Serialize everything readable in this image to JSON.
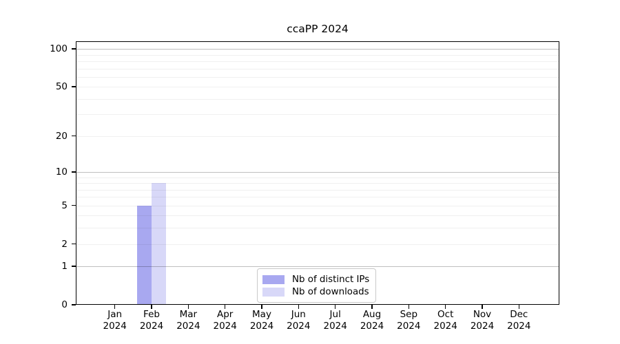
{
  "figure": {
    "background": "#ffffff"
  },
  "chart_data": {
    "type": "bar",
    "title": "ccaPP 2024",
    "categories": [
      "Jan",
      "Feb",
      "Mar",
      "Apr",
      "May",
      "Jun",
      "Jul",
      "Aug",
      "Sep",
      "Oct",
      "Nov",
      "Dec"
    ],
    "x_sublabel_year": "2024",
    "series": [
      {
        "name": "Nb of distinct IPs",
        "color": "#a8a8f0",
        "values": [
          0,
          5,
          0,
          0,
          0,
          0,
          0,
          0,
          0,
          0,
          0,
          0
        ]
      },
      {
        "name": "Nb of downloads",
        "color": "#d8d8f8",
        "values": [
          0,
          8,
          0,
          0,
          0,
          0,
          0,
          0,
          0,
          0,
          0,
          0
        ]
      }
    ],
    "yscale": "log1p",
    "ylim": [
      0,
      115
    ],
    "ytick_labels": [
      0,
      1,
      2,
      5,
      10,
      20,
      50,
      100
    ],
    "grid_major_values": [
      1,
      10,
      100
    ],
    "grid_minor_values": [
      2,
      3,
      4,
      5,
      6,
      7,
      8,
      9,
      20,
      30,
      40,
      50,
      60,
      70,
      80,
      90
    ],
    "grid": "horizontal",
    "legend_position": "bottom-center",
    "axis_color": "#000000",
    "grid_major_color": "rgba(0,0,0,0.25)",
    "grid_minor_color": "rgba(0,0,0,0.06)"
  }
}
